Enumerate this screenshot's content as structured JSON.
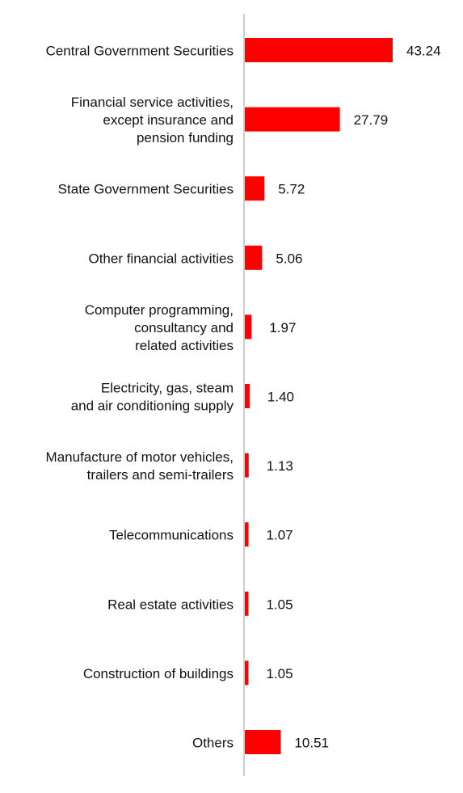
{
  "chart_data": {
    "type": "bar",
    "orientation": "horizontal",
    "categories": [
      [
        "Central Government Securities"
      ],
      [
        "Financial service activities,",
        "except insurance and",
        "pension funding"
      ],
      [
        "State Government Securities"
      ],
      [
        "Other financial activities"
      ],
      [
        "Computer programming,",
        "consultancy and",
        "related activities"
      ],
      [
        "Electricity, gas, steam",
        "and air conditioning supply"
      ],
      [
        "Manufacture of motor vehicles,",
        "trailers and semi-trailers"
      ],
      [
        "Telecommunications"
      ],
      [
        "Real estate activities"
      ],
      [
        "Construction of buildings"
      ],
      [
        "Others"
      ]
    ],
    "values": [
      43.24,
      27.79,
      5.72,
      5.06,
      1.97,
      1.4,
      1.13,
      1.07,
      1.05,
      1.05,
      10.51
    ],
    "value_labels": [
      "43.24",
      "27.79",
      "5.72",
      "5.06",
      "1.97",
      "1.40",
      "1.13",
      "1.07",
      "1.05",
      "1.05",
      "10.51"
    ],
    "bar_color": "#ff0000",
    "axis_color": "#cccccc",
    "xlim": [
      0,
      43.24
    ],
    "grid": false,
    "legend": "none"
  }
}
